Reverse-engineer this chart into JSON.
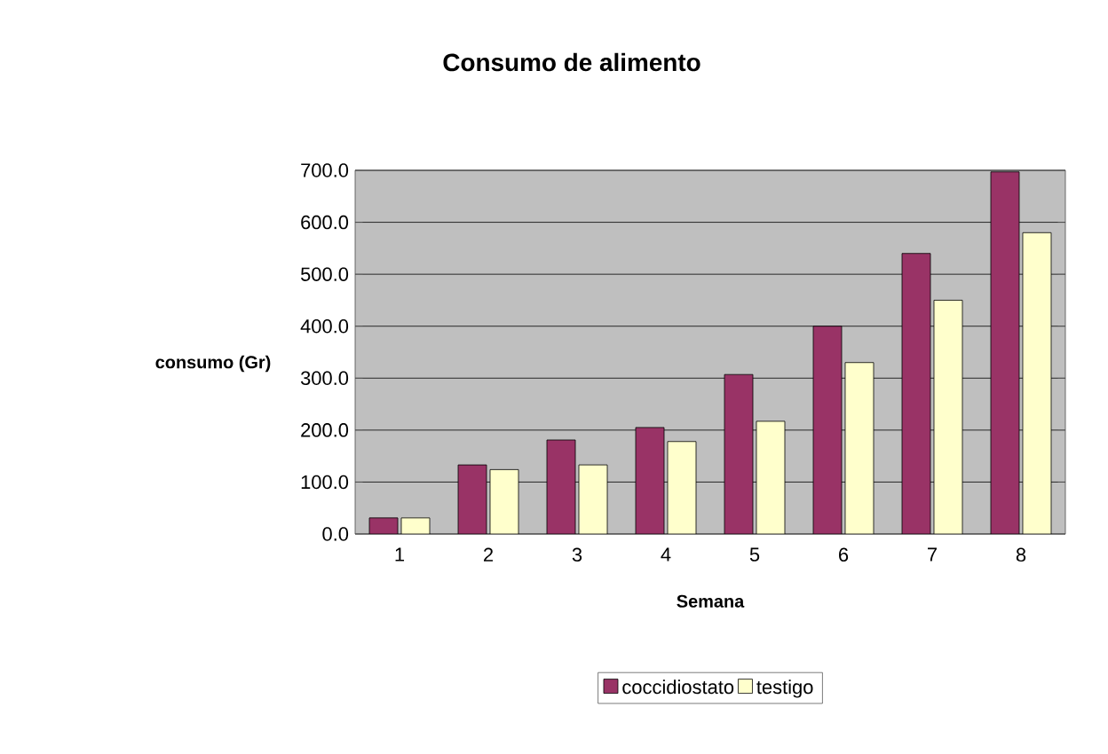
{
  "chart_data": {
    "type": "bar",
    "title": "Consumo de alimento",
    "xlabel": "Semana",
    "ylabel": "consumo (Gr)",
    "categories": [
      "1",
      "2",
      "3",
      "4",
      "5",
      "6",
      "7",
      "8"
    ],
    "series": [
      {
        "name": "coccidiostato",
        "color": "#993366",
        "values": [
          31,
          133,
          181,
          205,
          307,
          400,
          540,
          697
        ]
      },
      {
        "name": "testigo",
        "color": "#ffffcc",
        "values": [
          31,
          124,
          133,
          178,
          217,
          330,
          450,
          580
        ]
      }
    ],
    "ylim": [
      0,
      700
    ],
    "yticks": [
      {
        "value": 0,
        "label": "0.0"
      },
      {
        "value": 100,
        "label": "100.0"
      },
      {
        "value": 200,
        "label": "200.0"
      },
      {
        "value": 300,
        "label": "300.0"
      },
      {
        "value": 400,
        "label": "400.0"
      },
      {
        "value": 500,
        "label": "500.0"
      },
      {
        "value": 600,
        "label": "600.0"
      },
      {
        "value": 700,
        "label": "700.0"
      }
    ],
    "grid": "y",
    "legend": "bottom"
  }
}
